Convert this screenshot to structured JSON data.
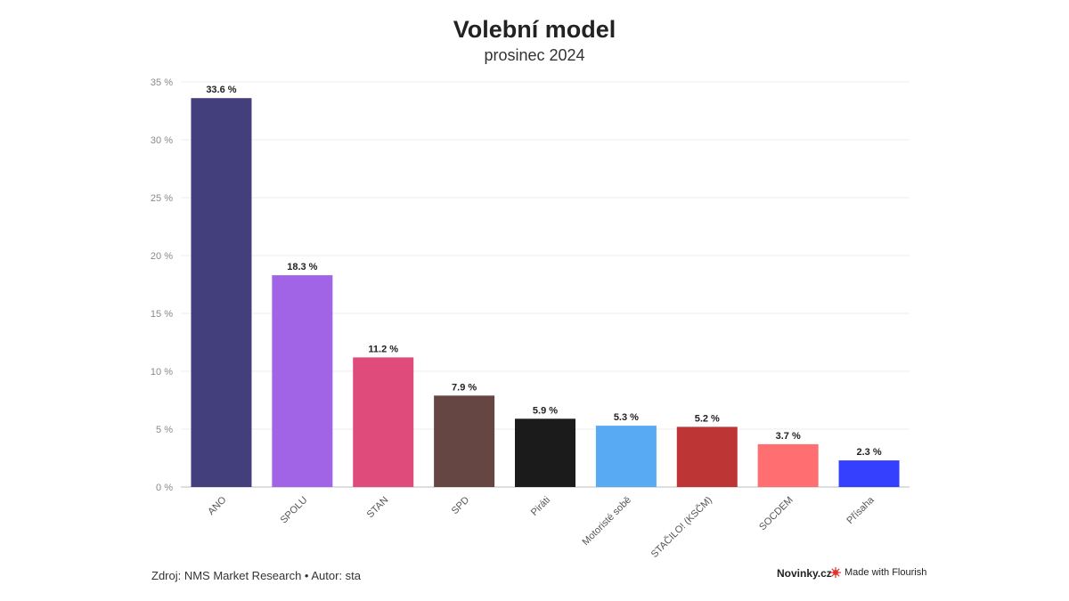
{
  "title": "Volební model",
  "subtitle": "prosinec 2024",
  "footer": {
    "source": "Zdroj: NMS Market Research • Autor: sta",
    "brand": "Novinky.cz",
    "made_with": "Made with Flourish"
  },
  "chart_data": {
    "type": "bar",
    "title": "Volební model",
    "subtitle": "prosinec 2024",
    "xlabel": "",
    "ylabel": "",
    "ylim": [
      0,
      35
    ],
    "yticks": [
      0,
      5,
      10,
      15,
      20,
      25,
      30,
      35
    ],
    "ytick_labels": [
      "0 %",
      "5 %",
      "10 %",
      "15 %",
      "20 %",
      "25 %",
      "30 %",
      "35 %"
    ],
    "grid": true,
    "categories": [
      "ANO",
      "SPOLU",
      "STAN",
      "SPD",
      "Piráti",
      "Motoristé sobě",
      "STAČILO! (KSČM)",
      "SOCDEM",
      "Přísaha"
    ],
    "values": [
      33.6,
      18.3,
      11.2,
      7.9,
      5.9,
      5.3,
      5.2,
      3.7,
      2.3
    ],
    "data_labels": [
      "33.6 %",
      "18.3 %",
      "11.2 %",
      "7.9 %",
      "5.9 %",
      "5.3 %",
      "5.2 %",
      "3.7 %",
      "2.3 %"
    ],
    "colors": [
      "#433f7d",
      "#a264e6",
      "#df4b7a",
      "#654643",
      "#1b1b1b",
      "#58aaf2",
      "#be3535",
      "#ff6f71",
      "#353ffe"
    ]
  }
}
